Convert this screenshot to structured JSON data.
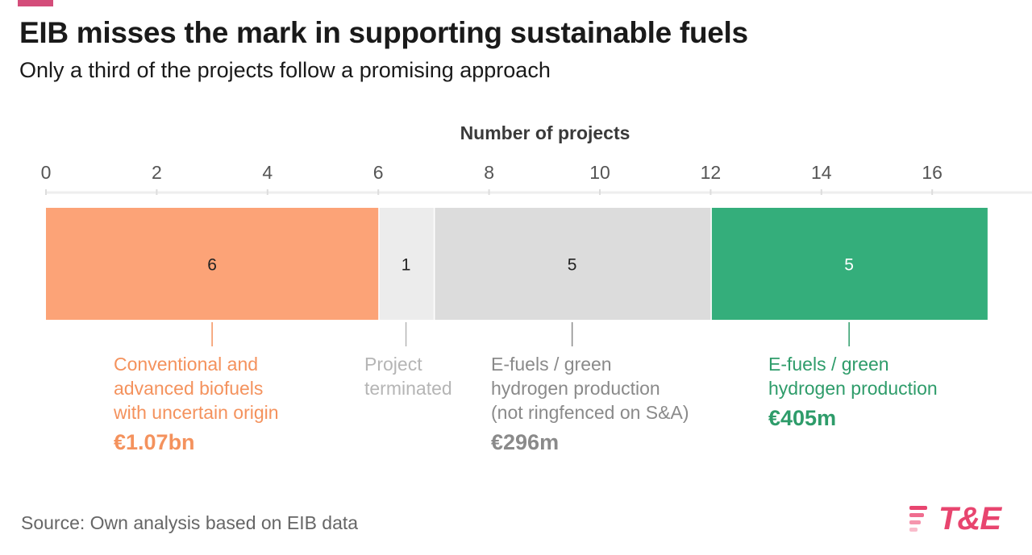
{
  "header": {
    "title": "EIB misses the mark in supporting sustainable fuels",
    "subtitle": "Only a third of the projects follow a promising approach",
    "accent_color": "#d44d7a"
  },
  "footer": {
    "source": "Source: Own analysis based on EIB data",
    "logo_text": "T&E",
    "logo_color": "#e8456f",
    "logo_icon": "stripes-icon"
  },
  "chart_data": {
    "type": "bar",
    "orientation": "horizontal-stacked",
    "title": "Number of projects",
    "xlabel": "Number of projects",
    "ylabel": "",
    "xlim": [
      0,
      17
    ],
    "xticks": [
      0,
      2,
      4,
      6,
      8,
      10,
      12,
      14,
      16
    ],
    "grid": false,
    "series": [
      {
        "name": "Conventional and advanced biofuels with uncertain origin",
        "value": 6,
        "color": "#fca377",
        "label_color": "#f4925d",
        "label_lines": [
          "Conventional and",
          "advanced biofuels",
          "with uncertain origin"
        ],
        "amount": "€1.07bn"
      },
      {
        "name": "Project terminated",
        "value": 1,
        "color": "#ececec",
        "label_color": "#b5b5b5",
        "label_lines": [
          "Project",
          "terminated"
        ],
        "amount": ""
      },
      {
        "name": "E-fuels / green hydrogen production (not ringfenced on S&A)",
        "value": 5,
        "color": "#dcdcdc",
        "label_color": "#8a8a8a",
        "label_lines": [
          "E-fuels / green",
          "hydrogen production",
          "(not ringfenced on S&A)"
        ],
        "amount": "€296m"
      },
      {
        "name": "E-fuels / green hydrogen production",
        "value": 5,
        "color": "#34ae7b",
        "label_color": "#2e9c6a",
        "label_lines": [
          "E-fuels / green",
          "hydrogen production"
        ],
        "amount": "€405m"
      }
    ]
  }
}
